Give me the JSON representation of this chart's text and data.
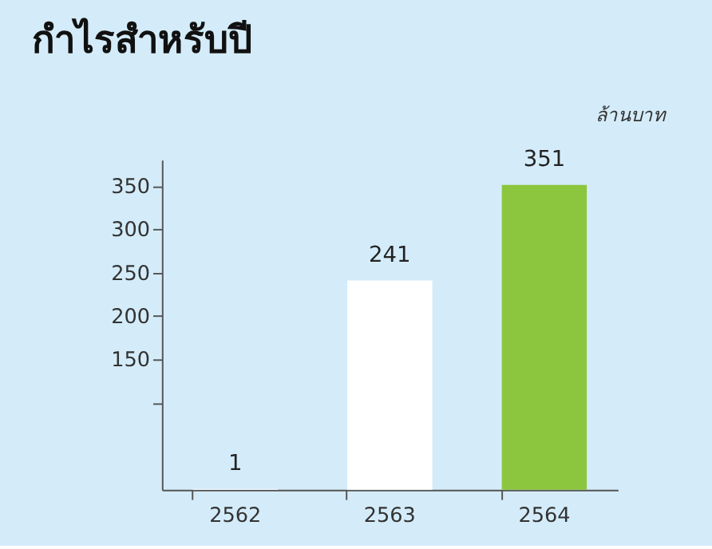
{
  "chart_data": {
    "type": "bar",
    "title": "กำไรสำหรับปี",
    "ylabel": "ล้านบาท",
    "categories": [
      "2562",
      "2563",
      "2564"
    ],
    "values": [
      1,
      241,
      351
    ],
    "colors": [
      "#ffffff",
      "#ffffff",
      "#8cc63f"
    ],
    "ylim": [
      0,
      380
    ],
    "yticks": [
      {
        "value": 100,
        "label": null
      },
      150,
      200,
      250,
      300,
      350
    ],
    "data_labels": true,
    "grid": false
  }
}
